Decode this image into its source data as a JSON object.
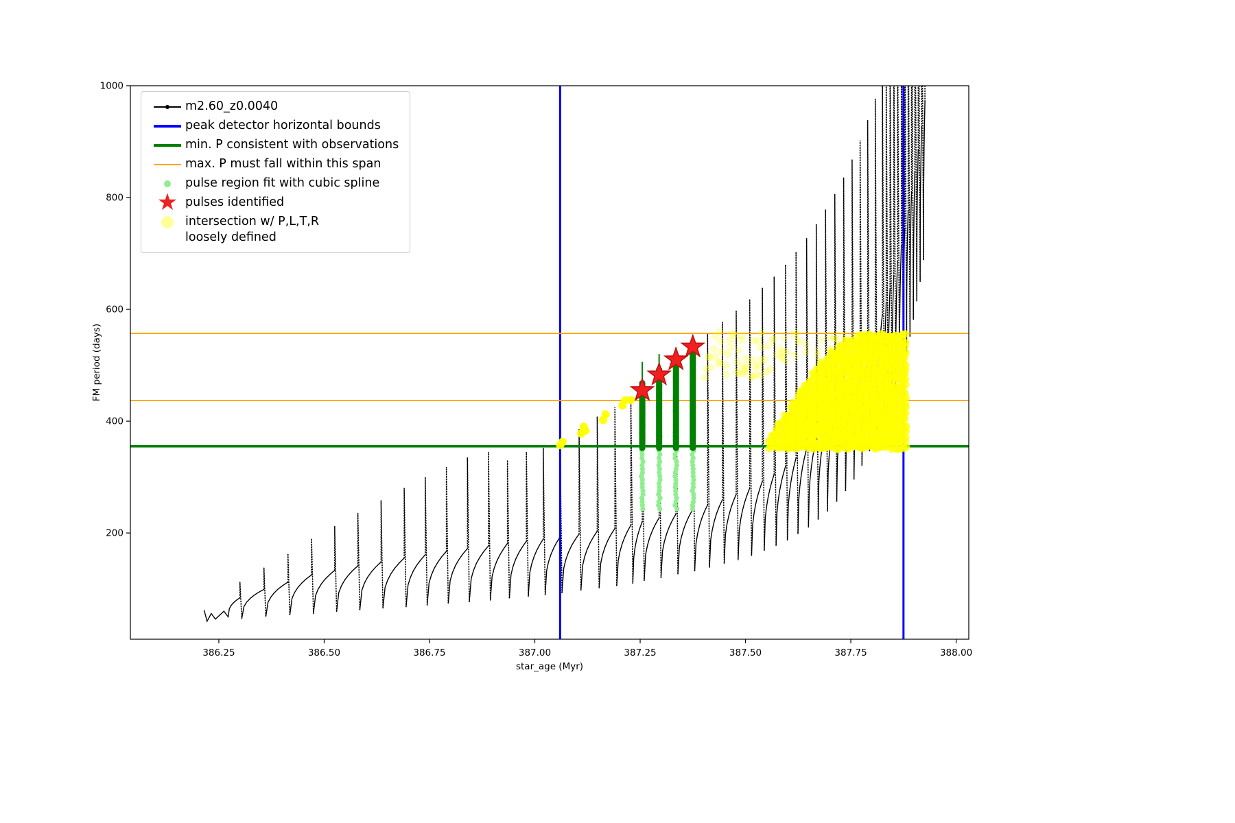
{
  "figure": {
    "background": "#ffffff"
  },
  "legend": {
    "items": [
      {
        "label": "m2.60_z0.0040",
        "marker": "line-dot",
        "color": "#000000"
      },
      {
        "label": "peak detector horizontal bounds",
        "marker": "thick-line",
        "color": "#0000ff"
      },
      {
        "label": "min. P consistent with observations",
        "marker": "thick-line",
        "color": "#008000"
      },
      {
        "label": "max. P must fall within this span",
        "marker": "line",
        "color": "#ffa500"
      },
      {
        "label": "pulse region fit with cubic spline",
        "marker": "dot",
        "color": "#90ee90"
      },
      {
        "label": "pulses identified",
        "marker": "star",
        "color": "#ee2020"
      },
      {
        "label": "intersection w/ P,L,T,R\nloosely defined",
        "marker": "big-dot",
        "color": "#ffff46"
      }
    ]
  },
  "chart_data": {
    "type": "line+scatter",
    "title": "",
    "xlabel": "star_age (Myr)",
    "ylabel": "FM period (days)",
    "xlim": [
      386.04,
      388.03
    ],
    "ylim": [
      10,
      1000
    ],
    "grid": false,
    "legend_position": "upper left",
    "xticks": [
      386.25,
      386.5,
      386.75,
      387.0,
      387.25,
      387.5,
      387.75,
      388.0
    ],
    "xtick_labels": [
      "386.25",
      "386.50",
      "386.75",
      "387.00",
      "387.25",
      "387.50",
      "387.75",
      "388.00"
    ],
    "yticks": [
      200,
      400,
      600,
      800,
      1000
    ],
    "colors": {
      "track": "#000000",
      "bounds": "#0000ff",
      "min_line": "#008000",
      "span_line": "#ffa500",
      "spline_fit": "#90ee90",
      "spline_dark": "#008000",
      "pulse_fill": "#f02020",
      "pulse_edge": "#c01010",
      "intersection": "#ffff00"
    },
    "series": {
      "track": {
        "name": "m2.60_z0.0040",
        "lead": [
          [
            386.215,
            62
          ],
          [
            386.222,
            42
          ],
          [
            386.232,
            56
          ],
          [
            386.242,
            46
          ],
          [
            386.262,
            60
          ],
          [
            386.272,
            50
          ]
        ],
        "cycles": [
          [
            386.3,
            44,
            84,
            112
          ],
          [
            386.357,
            47,
            99,
            138
          ],
          [
            386.414,
            50,
            112,
            163
          ],
          [
            386.47,
            53,
            125,
            190
          ],
          [
            386.525,
            56,
            133,
            212
          ],
          [
            386.58,
            59,
            141,
            235
          ],
          [
            386.635,
            62,
            148,
            258
          ],
          [
            386.69,
            65,
            155,
            280
          ],
          [
            386.74,
            68,
            161,
            300
          ],
          [
            386.79,
            71,
            167,
            318
          ],
          [
            386.84,
            74,
            172,
            335
          ],
          [
            386.89,
            77,
            177,
            345
          ],
          [
            386.935,
            80,
            181,
            330
          ],
          [
            386.98,
            83,
            185,
            345
          ],
          [
            387.02,
            86,
            189,
            352
          ],
          [
            387.06,
            89,
            193,
            360
          ],
          [
            387.105,
            93,
            198,
            385
          ],
          [
            387.148,
            97,
            203,
            408
          ],
          [
            387.19,
            101,
            208,
            425
          ],
          [
            387.228,
            105,
            214,
            438
          ],
          [
            387.255,
            110,
            220,
            468
          ],
          [
            387.295,
            115,
            227,
            492
          ],
          [
            387.335,
            120,
            234,
            515
          ],
          [
            387.375,
            126,
            242,
            530
          ],
          [
            387.41,
            132,
            250,
            556
          ],
          [
            387.445,
            138,
            259,
            577
          ],
          [
            387.478,
            145,
            269,
            597
          ],
          [
            387.51,
            152,
            280,
            618
          ],
          [
            387.54,
            160,
            292,
            638
          ],
          [
            387.568,
            168,
            305,
            658
          ],
          [
            387.595,
            177,
            319,
            680
          ],
          [
            387.62,
            187,
            334,
            703
          ],
          [
            387.645,
            198,
            350,
            727
          ],
          [
            387.668,
            210,
            368,
            752
          ],
          [
            387.69,
            224,
            388,
            778
          ],
          [
            387.712,
            239,
            409,
            806
          ],
          [
            387.733,
            256,
            432,
            836
          ],
          [
            387.753,
            275,
            458,
            868
          ],
          [
            387.772,
            296,
            486,
            902
          ],
          [
            387.79,
            320,
            517,
            938
          ],
          [
            387.808,
            347,
            552,
            976
          ],
          [
            387.825,
            377,
            590,
            1020
          ],
          [
            387.834,
            394,
            612,
            1045
          ],
          [
            387.843,
            412,
            636,
            1070
          ],
          [
            387.852,
            431,
            660,
            1095
          ],
          [
            387.861,
            452,
            686,
            1120
          ],
          [
            387.87,
            474,
            714,
            1150
          ],
          [
            387.878,
            498,
            744,
            1180
          ],
          [
            387.886,
            524,
            776,
            1210
          ],
          [
            387.894,
            552,
            810,
            1240
          ],
          [
            387.902,
            582,
            846,
            1270
          ],
          [
            387.91,
            615,
            885,
            1300
          ],
          [
            387.918,
            650,
            927,
            1330
          ],
          [
            387.926,
            688,
            972,
            1360
          ]
        ]
      },
      "peak_bounds_x": [
        387.06,
        387.875
      ],
      "min_P": 355,
      "max_P_span": [
        437,
        557
      ],
      "pulses": [
        [
          387.255,
          455
        ],
        [
          387.295,
          483
        ],
        [
          387.335,
          510
        ],
        [
          387.375,
          533
        ]
      ],
      "spline_columns": {
        "bottom": 352,
        "dots_bottom": 243,
        "columns": [
          {
            "x": 387.255,
            "top": 468,
            "thin_top": 506
          },
          {
            "x": 387.295,
            "top": 492,
            "thin_top": 520
          },
          {
            "x": 387.335,
            "top": 515,
            "thin_top": 532
          },
          {
            "x": 387.375,
            "top": 530,
            "thin_top": 548
          }
        ]
      },
      "yellow": {
        "bright": [
          [
            387.06,
            357
          ],
          [
            387.066,
            363
          ],
          [
            387.11,
            378
          ],
          [
            387.116,
            390
          ],
          [
            387.12,
            383
          ],
          [
            387.162,
            402
          ],
          [
            387.168,
            412
          ],
          [
            387.208,
            428
          ],
          [
            387.214,
            437
          ],
          [
            387.228,
            438
          ]
        ],
        "wedge": {
          "x0": 387.555,
          "x1": 387.882,
          "bottom": 353,
          "dx": 0.0057,
          "dy": 10,
          "envelope": [
            [
              387.555,
              368
            ],
            [
              387.58,
              398
            ],
            [
              387.605,
              428
            ],
            [
              387.63,
              456
            ],
            [
              387.655,
              482
            ],
            [
              387.68,
              506
            ],
            [
              387.705,
              526
            ],
            [
              387.73,
              541
            ],
            [
              387.755,
              551
            ],
            [
              387.78,
              556
            ],
            [
              387.882,
              556
            ]
          ]
        },
        "faint_boxes": [
          {
            "x0": 387.4,
            "x1": 387.56,
            "y0": 478,
            "y1": 560,
            "n": 48,
            "opacity": 0.25
          },
          {
            "x0": 387.56,
            "x1": 387.78,
            "y0": 505,
            "y1": 558,
            "n": 40,
            "opacity": 0.22
          }
        ]
      }
    }
  }
}
